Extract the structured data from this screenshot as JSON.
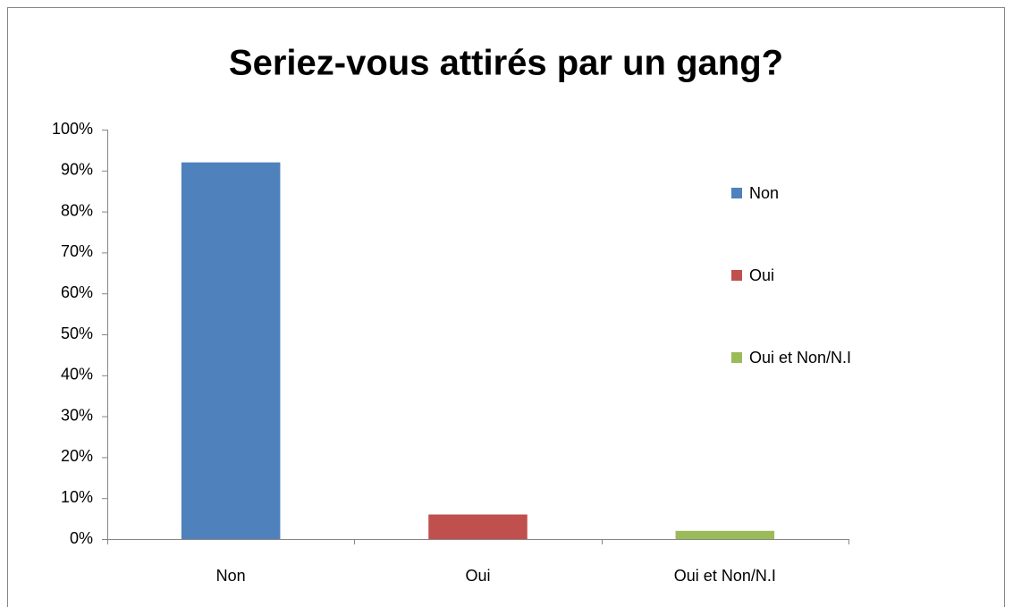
{
  "chart_data": {
    "type": "bar",
    "title": "Seriez-vous attirés par un gang?",
    "categories": [
      "Non",
      "Oui",
      "Oui et Non/N.I"
    ],
    "values": [
      92,
      6,
      2
    ],
    "colors": [
      "#4f81bd",
      "#c0504d",
      "#9bbb59"
    ],
    "ylim": [
      0,
      100
    ],
    "yticks": [
      {
        "value": 0,
        "label": "0%"
      },
      {
        "value": 10,
        "label": "10%"
      },
      {
        "value": 20,
        "label": "20%"
      },
      {
        "value": 30,
        "label": "30%"
      },
      {
        "value": 40,
        "label": "40%"
      },
      {
        "value": 50,
        "label": "50%"
      },
      {
        "value": 60,
        "label": "60%"
      },
      {
        "value": 70,
        "label": "70%"
      },
      {
        "value": 80,
        "label": "80%"
      },
      {
        "value": 90,
        "label": "90%"
      },
      {
        "value": 100,
        "label": "100%"
      }
    ],
    "grid": false,
    "legend": "right"
  }
}
